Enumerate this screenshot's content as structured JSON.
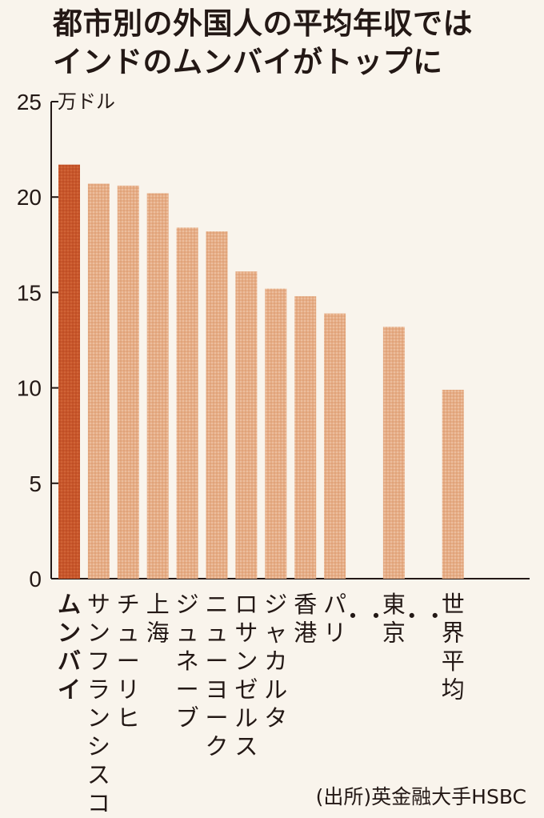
{
  "chart_data": {
    "type": "bar",
    "title": [
      "都市別の外国人の平均年収では",
      "インドのムンバイがトップに"
    ],
    "unit_label": "万ドル",
    "categories": [
      "ムンバイ",
      "サンフランシスコ",
      "チューリヒ",
      "上海",
      "ジュネーブ",
      "ニューヨーク",
      "ロサンゼルス",
      "ジャカルタ",
      "香港",
      "パリ",
      "・・",
      "東京",
      "・・",
      "世界平均"
    ],
    "values": [
      21.7,
      20.7,
      20.6,
      20.2,
      18.4,
      18.2,
      16.1,
      15.2,
      14.8,
      13.9,
      null,
      13.2,
      null,
      9.9
    ],
    "highlight_index": 0,
    "ylim": [
      0,
      25
    ],
    "yticks": [
      0,
      5,
      10,
      15,
      20,
      25
    ],
    "colors": {
      "bar": "#e3a87f",
      "highlight": "#c8562a",
      "axis": "#231815"
    },
    "source": "(出所)英金融大手HSBC"
  }
}
